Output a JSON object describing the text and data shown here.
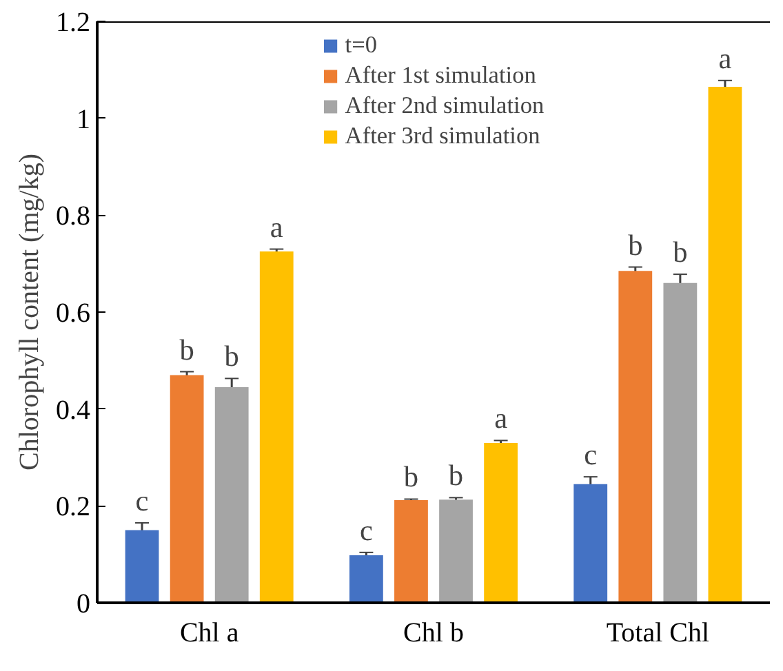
{
  "chart_data": {
    "type": "bar",
    "ylabel": "Chlorophyll content (mg/kg)",
    "categories": [
      "Chl a",
      "Chl b",
      "Total Chl"
    ],
    "series": [
      {
        "name": "t=0",
        "color": "#4472c4",
        "values": [
          0.15,
          0.098,
          0.245
        ],
        "errors": [
          0.015,
          0.006,
          0.015
        ]
      },
      {
        "name": "After 1st simulation",
        "color": "#ed7d31",
        "values": [
          0.47,
          0.212,
          0.685
        ],
        "errors": [
          0.007,
          0.002,
          0.008
        ]
      },
      {
        "name": "After 2nd simulation",
        "color": "#a5a5a5",
        "values": [
          0.445,
          0.213,
          0.66
        ],
        "errors": [
          0.018,
          0.004,
          0.018
        ]
      },
      {
        "name": "After 3rd simulation",
        "color": "#ffc000",
        "values": [
          0.725,
          0.33,
          1.065
        ],
        "errors": [
          0.005,
          0.005,
          0.013
        ]
      }
    ],
    "ylim": [
      0,
      1.2
    ],
    "yticks": [
      0,
      0.2,
      0.4,
      0.6,
      0.8,
      1,
      1.2
    ],
    "annotations": [
      "c",
      "b",
      "b",
      "a",
      "c",
      "b",
      "b",
      "a",
      "c",
      "b",
      "b",
      "a"
    ],
    "grid": false,
    "legend": "top"
  }
}
